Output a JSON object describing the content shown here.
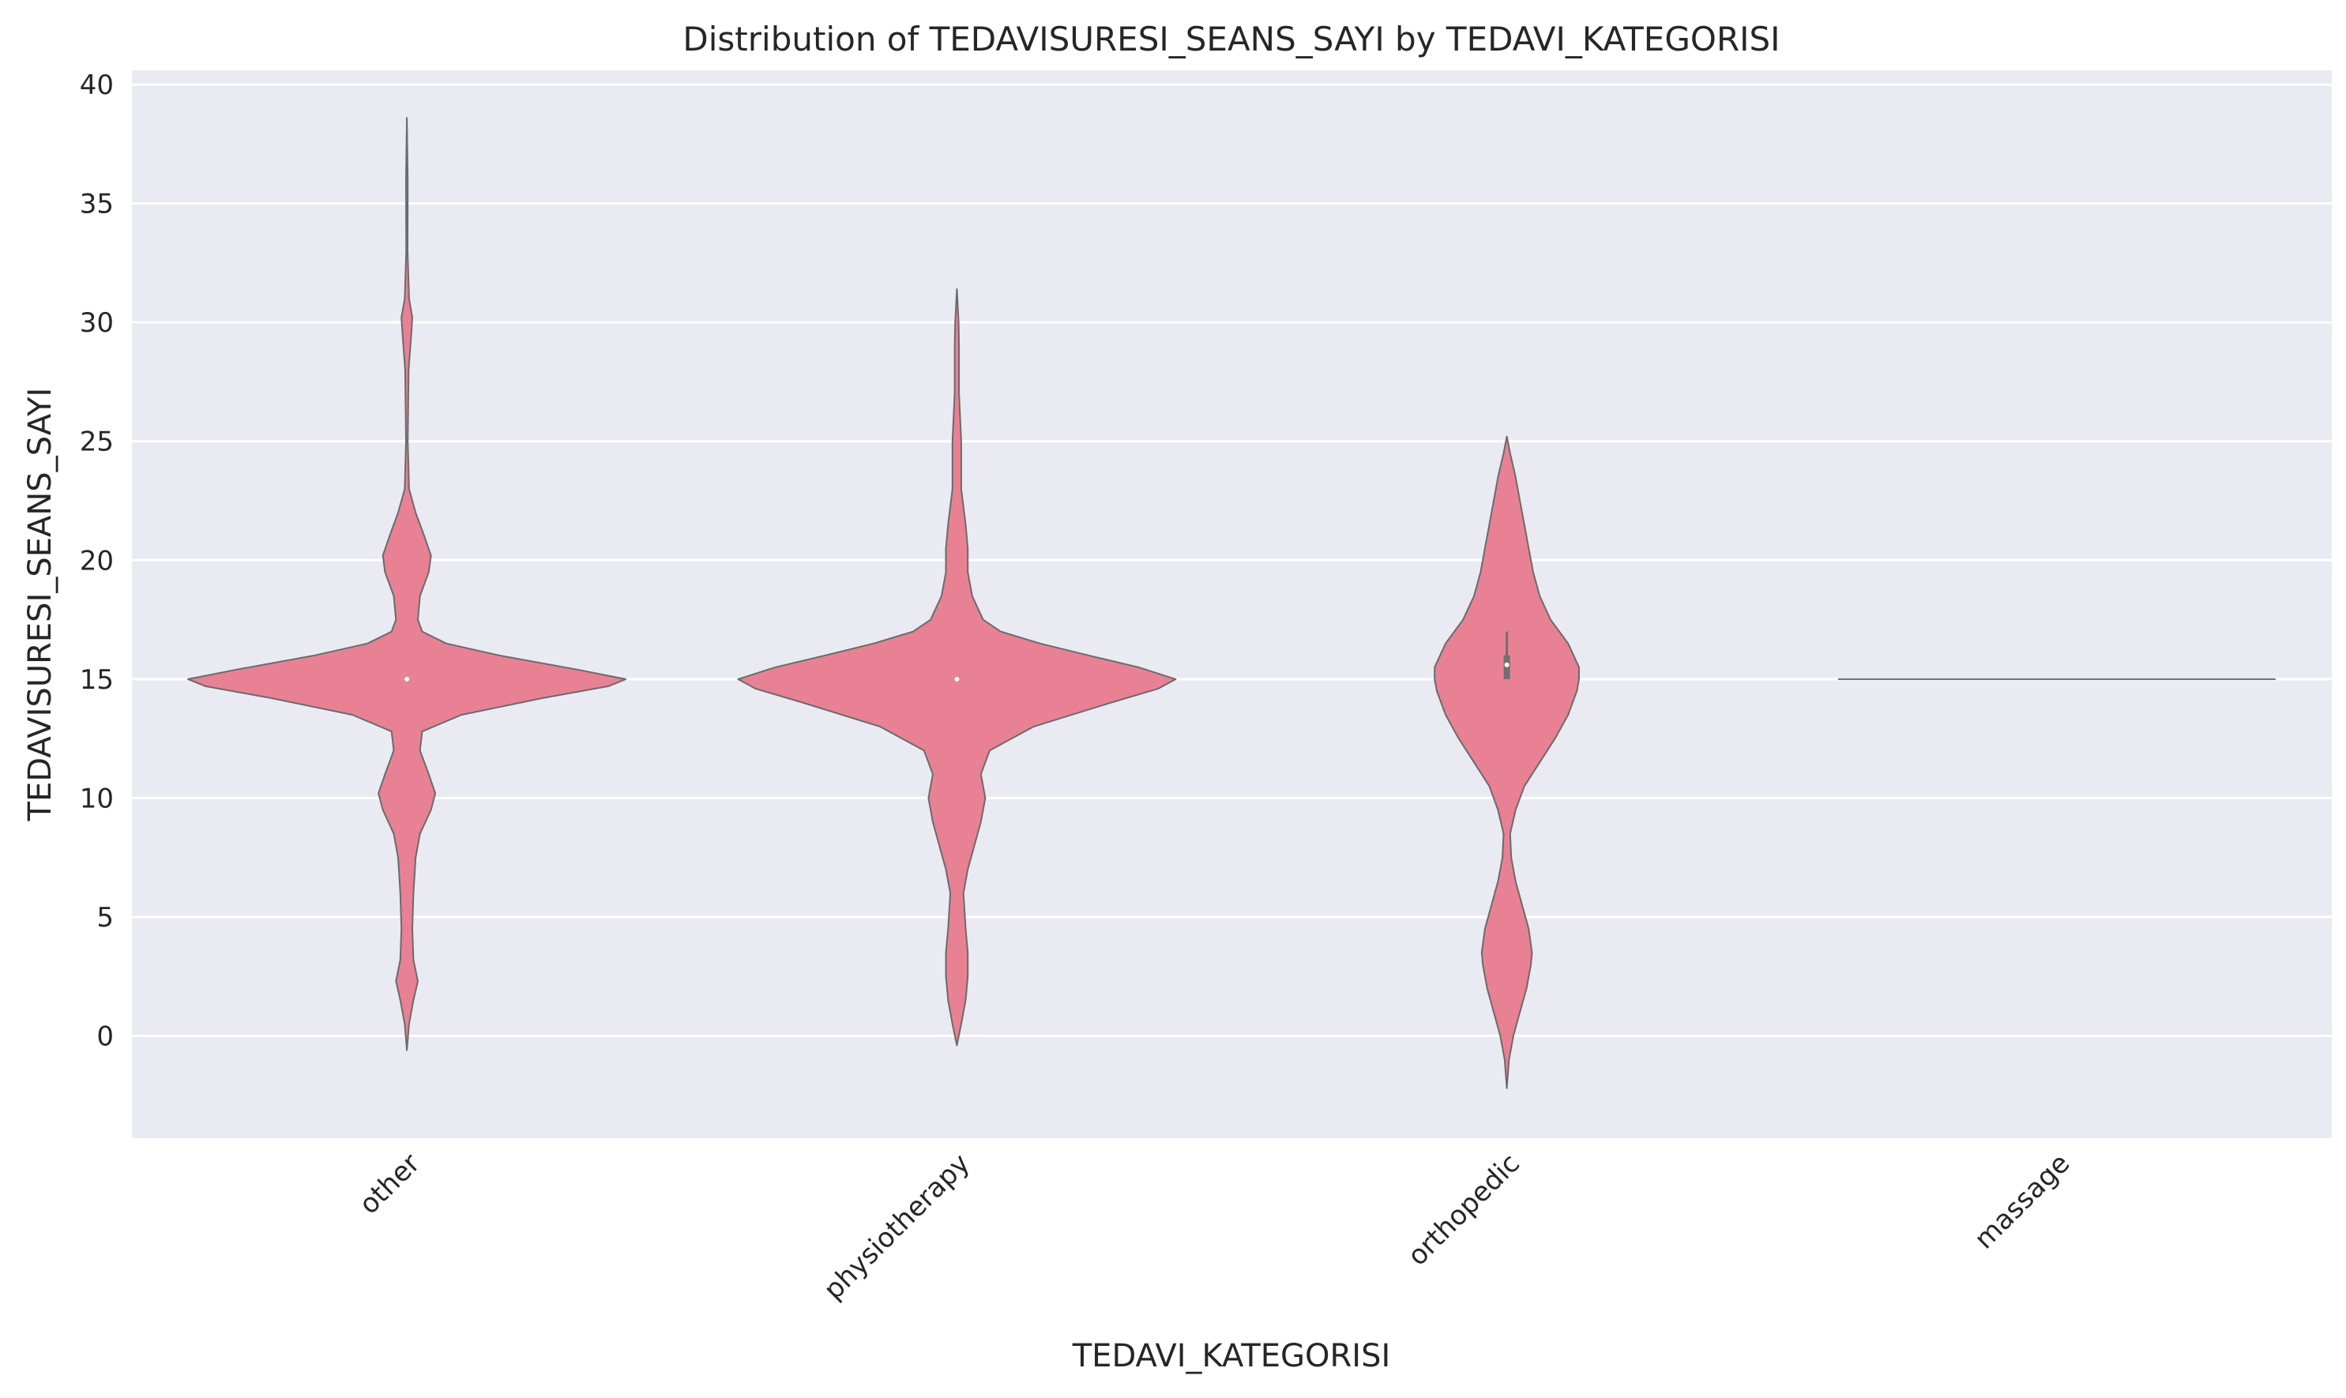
{
  "chart_data": {
    "type": "violin",
    "title": "Distribution of TEDAVISURESI_SEANS_SAYI by TEDAVI_KATEGORISI",
    "xlabel": "TEDAVI_KATEGORISI",
    "ylabel": "TEDAVISURESI_SEANS_SAYI",
    "ylim": [
      -4.3,
      40.6
    ],
    "yticks": [
      0,
      5,
      10,
      15,
      20,
      25,
      30,
      35,
      40
    ],
    "grid": true,
    "legend": "none",
    "colors": {
      "violin_fill": "#e88194",
      "violin_edge": "#6b6b6b",
      "plot_background": "#eaeaf2",
      "grid": "#ffffff",
      "box": "#707070",
      "median": "#ffffff"
    },
    "categories": [
      "other",
      "physiotherapy",
      "orthopedic",
      "massage"
    ],
    "violins": [
      {
        "category": "other",
        "min": -0.6,
        "max": 38.6,
        "box": {
          "q1": 15,
          "median": 15,
          "q3": 15,
          "whisker_low": 15,
          "whisker_high": 15
        },
        "density": [
          [
            -0.6,
            0.0
          ],
          [
            0.5,
            0.01
          ],
          [
            1.5,
            0.03
          ],
          [
            2.3,
            0.05
          ],
          [
            3.2,
            0.03
          ],
          [
            4.5,
            0.025
          ],
          [
            6.0,
            0.03
          ],
          [
            7.5,
            0.04
          ],
          [
            8.5,
            0.06
          ],
          [
            9.5,
            0.11
          ],
          [
            10.2,
            0.13
          ],
          [
            11.0,
            0.1
          ],
          [
            12.0,
            0.06
          ],
          [
            12.8,
            0.07
          ],
          [
            13.5,
            0.25
          ],
          [
            14.2,
            0.62
          ],
          [
            14.7,
            0.92
          ],
          [
            15.0,
            1.0
          ],
          [
            15.4,
            0.78
          ],
          [
            16.0,
            0.42
          ],
          [
            16.5,
            0.18
          ],
          [
            17.0,
            0.07
          ],
          [
            17.5,
            0.05
          ],
          [
            18.5,
            0.06
          ],
          [
            19.5,
            0.1
          ],
          [
            20.2,
            0.11
          ],
          [
            21.0,
            0.08
          ],
          [
            22.0,
            0.04
          ],
          [
            23.0,
            0.01
          ],
          [
            25.0,
            0.004
          ],
          [
            28.0,
            0.008
          ],
          [
            29.5,
            0.02
          ],
          [
            30.2,
            0.025
          ],
          [
            31.0,
            0.01
          ],
          [
            33.0,
            0.003
          ],
          [
            36.0,
            0.004
          ],
          [
            38.6,
            0.0
          ]
        ]
      },
      {
        "category": "physiotherapy",
        "min": -0.4,
        "max": 31.4,
        "box": {
          "q1": 15,
          "median": 15,
          "q3": 15,
          "whisker_low": 15,
          "whisker_high": 15
        },
        "density": [
          [
            -0.4,
            0.0
          ],
          [
            0.5,
            0.02
          ],
          [
            1.5,
            0.04
          ],
          [
            2.5,
            0.05
          ],
          [
            3.5,
            0.05
          ],
          [
            4.5,
            0.04
          ],
          [
            6.0,
            0.03
          ],
          [
            7.0,
            0.05
          ],
          [
            8.0,
            0.08
          ],
          [
            9.0,
            0.11
          ],
          [
            10.0,
            0.13
          ],
          [
            11.0,
            0.11
          ],
          [
            12.0,
            0.15
          ],
          [
            13.0,
            0.35
          ],
          [
            14.0,
            0.7
          ],
          [
            14.6,
            0.92
          ],
          [
            15.0,
            1.0
          ],
          [
            15.5,
            0.83
          ],
          [
            16.0,
            0.6
          ],
          [
            16.5,
            0.38
          ],
          [
            17.0,
            0.2
          ],
          [
            17.5,
            0.12
          ],
          [
            18.5,
            0.07
          ],
          [
            19.5,
            0.05
          ],
          [
            20.5,
            0.05
          ],
          [
            21.5,
            0.04
          ],
          [
            23.0,
            0.02
          ],
          [
            25.0,
            0.02
          ],
          [
            27.0,
            0.01
          ],
          [
            29.0,
            0.01
          ],
          [
            30.0,
            0.008
          ],
          [
            31.4,
            0.0
          ]
        ]
      },
      {
        "category": "orthopedic",
        "min": -2.2,
        "max": 25.2,
        "box": {
          "q1": 15,
          "median": 15.6,
          "q3": 16,
          "whisker_low": 15,
          "whisker_high": 17
        },
        "density": [
          [
            -2.2,
            0.0
          ],
          [
            -1.0,
            0.01
          ],
          [
            0.0,
            0.03
          ],
          [
            1.0,
            0.06
          ],
          [
            2.0,
            0.09
          ],
          [
            3.0,
            0.11
          ],
          [
            3.5,
            0.115
          ],
          [
            4.5,
            0.1
          ],
          [
            5.5,
            0.07
          ],
          [
            6.5,
            0.04
          ],
          [
            7.5,
            0.02
          ],
          [
            8.5,
            0.015
          ],
          [
            9.5,
            0.04
          ],
          [
            10.5,
            0.08
          ],
          [
            11.5,
            0.15
          ],
          [
            12.5,
            0.22
          ],
          [
            13.5,
            0.28
          ],
          [
            14.5,
            0.32
          ],
          [
            15.0,
            0.33
          ],
          [
            15.5,
            0.33
          ],
          [
            16.5,
            0.28
          ],
          [
            17.5,
            0.2
          ],
          [
            18.5,
            0.15
          ],
          [
            19.5,
            0.12
          ],
          [
            20.5,
            0.1
          ],
          [
            21.5,
            0.08
          ],
          [
            22.5,
            0.06
          ],
          [
            23.5,
            0.04
          ],
          [
            24.5,
            0.015
          ],
          [
            25.2,
            0.0
          ]
        ]
      },
      {
        "category": "massage",
        "min": 15,
        "max": 15,
        "constant": 15,
        "box": {
          "q1": 15,
          "median": 15,
          "q3": 15,
          "whisker_low": 15,
          "whisker_high": 15
        },
        "density": []
      }
    ]
  }
}
